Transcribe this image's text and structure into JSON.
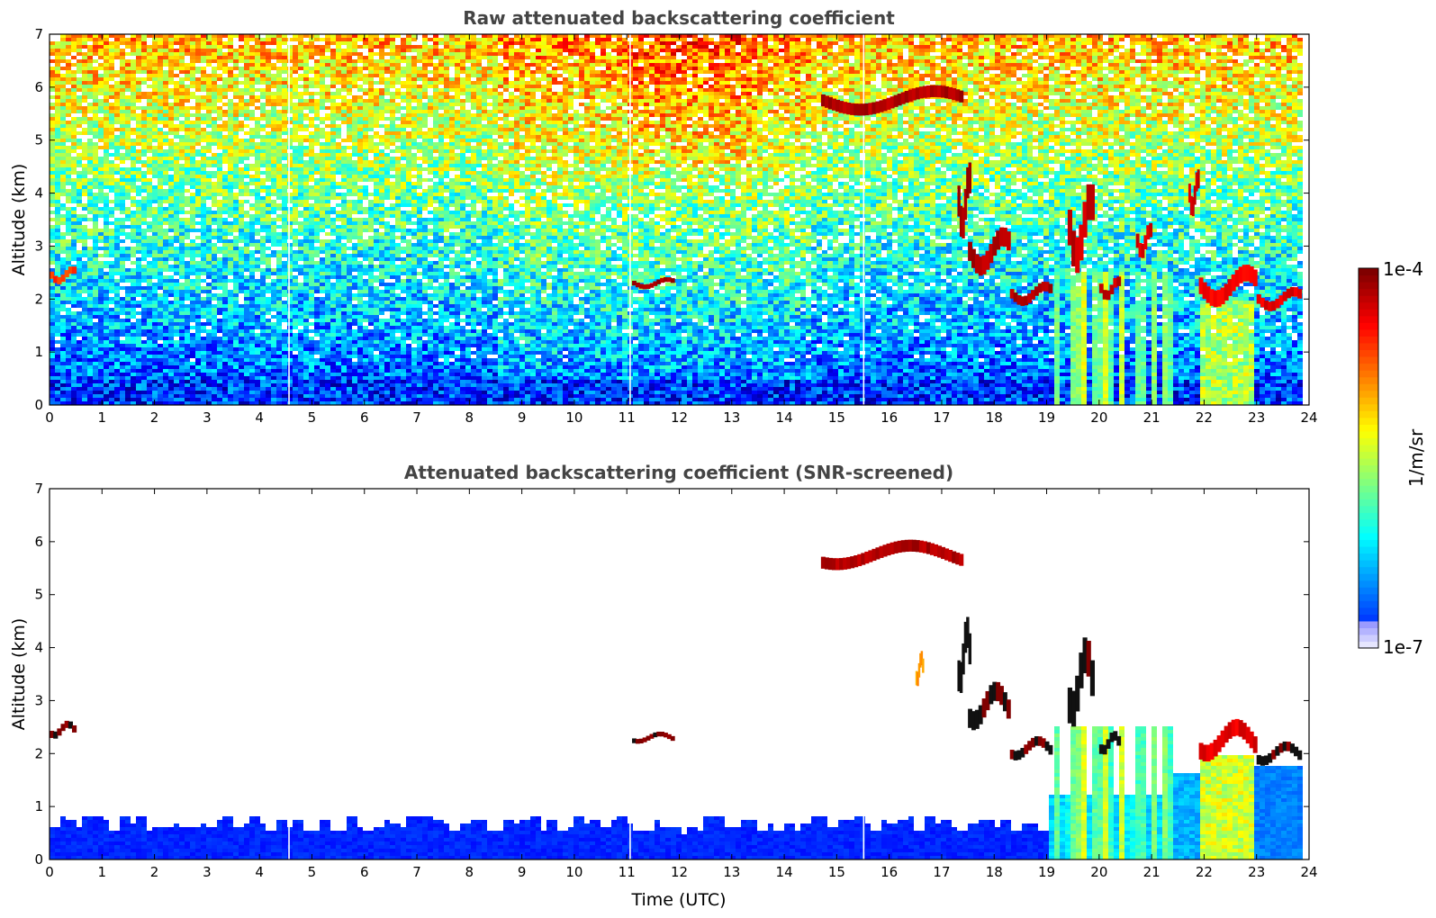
{
  "chart_data": [
    {
      "type": "heatmap",
      "title": "Raw attenuated backscattering coefficient",
      "xlabel": "",
      "ylabel": "Altitude (km)",
      "xlim": [
        0,
        24
      ],
      "ylim": [
        0,
        7
      ],
      "x_ticks": [
        "0",
        "1",
        "2",
        "3",
        "4",
        "5",
        "6",
        "7",
        "8",
        "9",
        "10",
        "11",
        "12",
        "13",
        "14",
        "15",
        "16",
        "17",
        "18",
        "19",
        "20",
        "21",
        "22",
        "23",
        "24"
      ],
      "y_ticks": [
        "0",
        "1",
        "2",
        "3",
        "4",
        "5",
        "6",
        "7"
      ],
      "data_end_time": 23.85,
      "screened": false,
      "features": [
        {
          "kind": "cloud",
          "t": [
            0.0,
            0.5
          ],
          "alt": [
            2.3,
            2.6
          ],
          "level": 0.82
        },
        {
          "kind": "cloud",
          "t": [
            11.1,
            11.9
          ],
          "alt": [
            2.2,
            2.4
          ],
          "level": 0.97
        },
        {
          "kind": "cloud",
          "t": [
            17.3,
            17.55
          ],
          "alt": [
            3.2,
            4.5
          ],
          "level": 0.96
        },
        {
          "kind": "cloud",
          "t": [
            17.5,
            18.3
          ],
          "alt": [
            2.5,
            3.3
          ],
          "level": 0.95
        },
        {
          "kind": "cloud",
          "t": [
            18.3,
            19.1
          ],
          "alt": [
            1.9,
            2.3
          ],
          "level": 0.95
        },
        {
          "kind": "cloud",
          "t": [
            19.4,
            19.9
          ],
          "alt": [
            2.6,
            4.1
          ],
          "level": 0.93
        },
        {
          "kind": "cloud",
          "t": [
            20.0,
            20.4
          ],
          "alt": [
            2.0,
            2.4
          ],
          "level": 0.93
        },
        {
          "kind": "cloud",
          "t": [
            20.7,
            21.0
          ],
          "alt": [
            2.8,
            3.4
          ],
          "level": 0.92
        },
        {
          "kind": "cloud",
          "t": [
            21.7,
            21.9
          ],
          "alt": [
            3.6,
            4.4
          ],
          "level": 0.93
        },
        {
          "kind": "cloud",
          "t": [
            21.9,
            23.0
          ],
          "alt": [
            1.9,
            2.6
          ],
          "level": 0.88
        },
        {
          "kind": "cloud",
          "t": [
            23.0,
            23.85
          ],
          "alt": [
            1.8,
            2.2
          ],
          "level": 0.9
        },
        {
          "kind": "cloud",
          "t": [
            14.7,
            17.4
          ],
          "alt": [
            5.5,
            6.0
          ],
          "level": 0.95
        },
        {
          "kind": "precip",
          "t": [
            19.0,
            21.4
          ],
          "alt": [
            0.0,
            2.5
          ],
          "level": 0.45
        },
        {
          "kind": "precip",
          "t": [
            21.9,
            23.0
          ],
          "alt": [
            0.0,
            2.0
          ],
          "level": 0.62
        }
      ]
    },
    {
      "type": "heatmap",
      "title": "Attenuated backscattering coefficient (SNR-screened)",
      "xlabel": "Time (UTC)",
      "ylabel": "Altitude (km)",
      "xlim": [
        0,
        24
      ],
      "ylim": [
        0,
        7
      ],
      "x_ticks": [
        "0",
        "1",
        "2",
        "3",
        "4",
        "5",
        "6",
        "7",
        "8",
        "9",
        "10",
        "11",
        "12",
        "13",
        "14",
        "15",
        "16",
        "17",
        "18",
        "19",
        "20",
        "21",
        "22",
        "23",
        "24"
      ],
      "y_ticks": [
        "0",
        "1",
        "2",
        "3",
        "4",
        "5",
        "6",
        "7"
      ],
      "data_end_time": 23.85,
      "screened": true,
      "features": [
        {
          "kind": "boundary_layer",
          "t": [
            0.0,
            19.0
          ],
          "alt": [
            0.0,
            1.0
          ],
          "level": 0.18
        },
        {
          "kind": "cloud",
          "t": [
            0.0,
            0.5
          ],
          "alt": [
            2.3,
            2.6
          ],
          "level": 1.0
        },
        {
          "kind": "cloud",
          "t": [
            11.1,
            11.9
          ],
          "alt": [
            2.2,
            2.4
          ],
          "level": 1.0
        },
        {
          "kind": "cloud",
          "t": [
            17.3,
            17.55
          ],
          "alt": [
            3.2,
            4.5
          ],
          "level": 1.0
        },
        {
          "kind": "cloud",
          "t": [
            17.5,
            18.3
          ],
          "alt": [
            2.5,
            3.3
          ],
          "level": 1.0
        },
        {
          "kind": "cloud",
          "t": [
            18.3,
            19.1
          ],
          "alt": [
            1.9,
            2.3
          ],
          "level": 1.0
        },
        {
          "kind": "cloud",
          "t": [
            19.4,
            19.9
          ],
          "alt": [
            2.6,
            4.1
          ],
          "level": 1.0
        },
        {
          "kind": "cloud",
          "t": [
            20.0,
            20.4
          ],
          "alt": [
            2.0,
            2.4
          ],
          "level": 1.0
        },
        {
          "kind": "cloud",
          "t": [
            21.9,
            23.0
          ],
          "alt": [
            1.9,
            2.6
          ],
          "level": 0.9
        },
        {
          "kind": "cloud",
          "t": [
            23.0,
            23.85
          ],
          "alt": [
            1.8,
            2.2
          ],
          "level": 1.0
        },
        {
          "kind": "cloud",
          "t": [
            16.5,
            16.65
          ],
          "alt": [
            3.3,
            3.9
          ],
          "level": 0.72
        },
        {
          "kind": "cloud",
          "t": [
            14.7,
            17.4
          ],
          "alt": [
            5.5,
            6.0
          ],
          "level": 0.95
        },
        {
          "kind": "precip",
          "t": [
            19.0,
            21.4
          ],
          "alt": [
            0.0,
            2.5
          ],
          "level": 0.45
        },
        {
          "kind": "precip",
          "t": [
            21.9,
            23.0
          ],
          "alt": [
            0.0,
            2.0
          ],
          "level": 0.62
        }
      ]
    }
  ],
  "colorbar": {
    "min_label": "1e-7",
    "max_label": "1e-4",
    "label": "1/m/sr",
    "scale": "log",
    "colormap": "jet"
  }
}
